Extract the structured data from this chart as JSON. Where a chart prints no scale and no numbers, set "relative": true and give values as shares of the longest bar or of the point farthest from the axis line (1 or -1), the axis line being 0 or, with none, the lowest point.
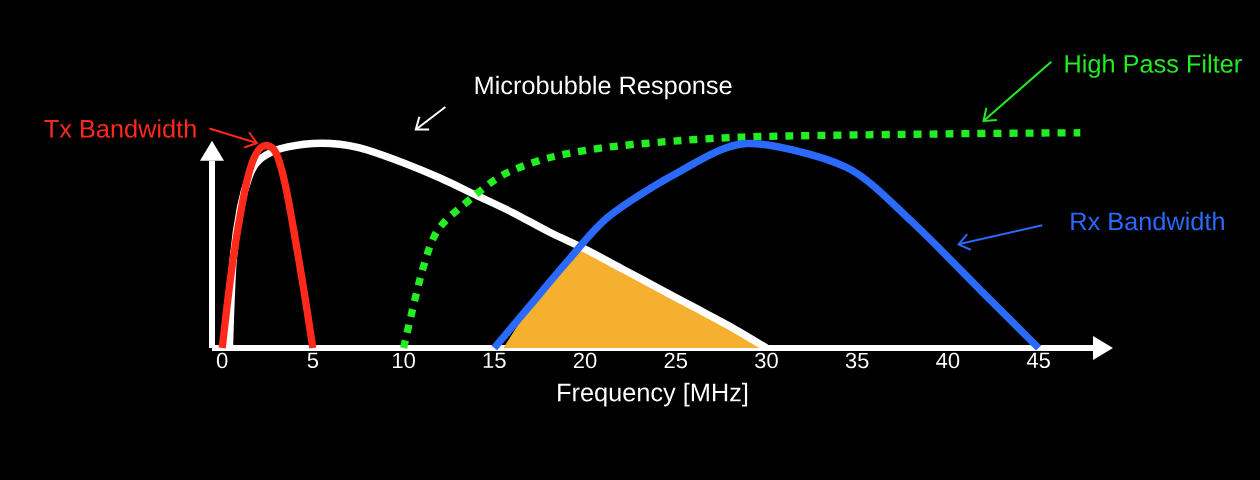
{
  "chart_data": {
    "type": "line",
    "relative": true,
    "xlabel": "Frequency [MHz]",
    "xlim": [
      -0.56,
      48
    ],
    "xticks": [
      0,
      5,
      10,
      15,
      20,
      25,
      30,
      35,
      40,
      45
    ],
    "marker": "none",
    "grid": false,
    "series": [
      {
        "type": "area",
        "color": "#f5b030",
        "x": [
          15.5,
          17,
          19,
          19.7,
          20,
          22,
          24,
          26,
          28,
          30
        ],
        "values": [
          0,
          0.2,
          0.4,
          0.47,
          0.46,
          0.37,
          0.28,
          0.19,
          0.1,
          0
        ]
      },
      {
        "name": "Microbubble Response",
        "color": "#ffffff",
        "line_style": "solid",
        "x": [
          0.4,
          0.6,
          1,
          1.5,
          2,
          3,
          4,
          5,
          6,
          7,
          8,
          10,
          12,
          14,
          16,
          18,
          20,
          22,
          24,
          26,
          28,
          30
        ],
        "values": [
          0,
          0.4,
          0.65,
          0.8,
          0.87,
          0.92,
          0.94,
          0.95,
          0.95,
          0.94,
          0.92,
          0.86,
          0.79,
          0.71,
          0.63,
          0.54,
          0.46,
          0.37,
          0.28,
          0.19,
          0.1,
          0
        ]
      },
      {
        "name": "Tx Bandwidth",
        "color": "#ff2a1a",
        "line_style": "solid",
        "x": [
          0,
          0.5,
          1,
          1.5,
          2,
          2.5,
          3,
          3.5,
          4,
          4.5,
          5
        ],
        "values": [
          0,
          0.35,
          0.62,
          0.82,
          0.92,
          0.94,
          0.9,
          0.75,
          0.52,
          0.27,
          0
        ]
      },
      {
        "name": "High Pass Filter",
        "color": "#22ee22",
        "line_style": "dotted",
        "x": [
          10,
          11,
          11.9,
          13.8,
          15.6,
          18.3,
          22,
          28.7,
          40,
          47.3
        ],
        "values": [
          0,
          0.35,
          0.55,
          0.7,
          0.81,
          0.89,
          0.94,
          0.98,
          0.995,
          1
        ]
      },
      {
        "name": "Rx Bandwidth",
        "color": "#2a6aff",
        "line_style": "solid",
        "x": [
          15,
          17,
          19,
          21.3,
          25,
          28.9,
          34.4,
          38.1,
          41.9,
          45
        ],
        "values": [
          0,
          0.2,
          0.4,
          0.61,
          0.81,
          0.95,
          0.84,
          0.58,
          0.26,
          0
        ]
      }
    ]
  }
}
